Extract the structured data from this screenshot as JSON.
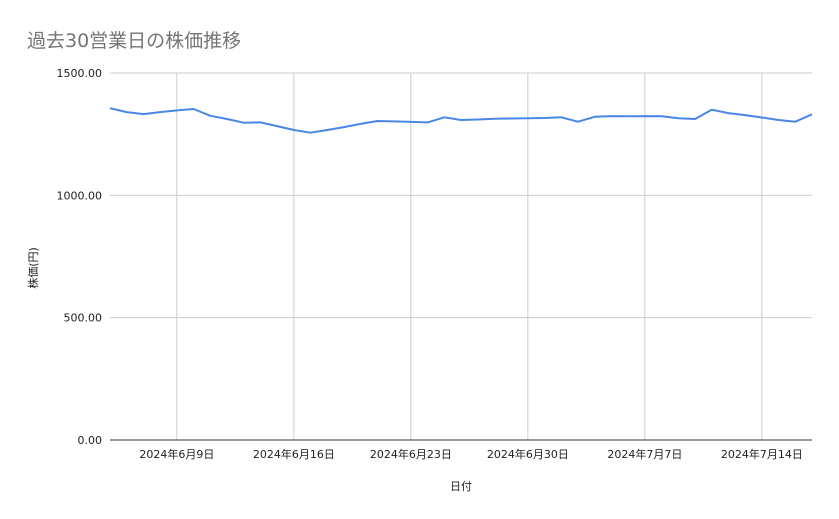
{
  "chart_data": {
    "type": "line",
    "title": "過去30営業日の株価推移",
    "xlabel": "日付",
    "ylabel": "株価(円)",
    "ylim": [
      0,
      1500
    ],
    "yticks": [
      "0.00",
      "500.00",
      "1000.00",
      "1500.00"
    ],
    "ytick_values": [
      0,
      500,
      1000,
      1500
    ],
    "xlim": [
      "2024-06-05",
      "2024-07-17"
    ],
    "xticks": [
      "2024年6月9日",
      "2024年6月16日",
      "2024年6月23日",
      "2024年6月30日",
      "2024年7月7日",
      "2024年7月14日"
    ],
    "xtick_dates": [
      "2024-06-09",
      "2024-06-16",
      "2024-06-23",
      "2024-06-30",
      "2024-07-07",
      "2024-07-14"
    ],
    "grid": true,
    "legend": "none",
    "series": [
      {
        "color": "#4a86e8",
        "x": [
          "2024-06-05",
          "2024-06-06",
          "2024-06-07",
          "2024-06-08",
          "2024-06-09",
          "2024-06-10",
          "2024-06-11",
          "2024-06-12",
          "2024-06-13",
          "2024-06-14",
          "2024-06-15",
          "2024-06-16",
          "2024-06-17",
          "2024-06-18",
          "2024-06-19",
          "2024-06-20",
          "2024-06-21",
          "2024-06-22",
          "2024-06-23",
          "2024-06-24",
          "2024-06-25",
          "2024-06-26",
          "2024-06-27",
          "2024-06-28",
          "2024-06-29",
          "2024-06-30",
          "2024-07-01",
          "2024-07-02",
          "2024-07-03",
          "2024-07-04",
          "2024-07-05",
          "2024-07-06",
          "2024-07-07",
          "2024-07-08",
          "2024-07-09",
          "2024-07-10",
          "2024-07-11",
          "2024-07-12",
          "2024-07-13",
          "2024-07-14",
          "2024-07-15",
          "2024-07-16",
          "2024-07-17"
        ],
        "values": [
          1356,
          1340,
          1332,
          1340,
          1347,
          1353,
          1325,
          1312,
          1297,
          1298,
          1283,
          1267,
          1256,
          1267,
          1279,
          1292,
          1304,
          1302,
          1300,
          1298,
          1319,
          1308,
          1310,
          1313,
          1314,
          1315,
          1316,
          1319,
          1301,
          1321,
          1324,
          1323,
          1324,
          1323,
          1315,
          1312,
          1350,
          1336,
          1328,
          1318,
          1308,
          1301,
          1331
        ]
      }
    ]
  }
}
